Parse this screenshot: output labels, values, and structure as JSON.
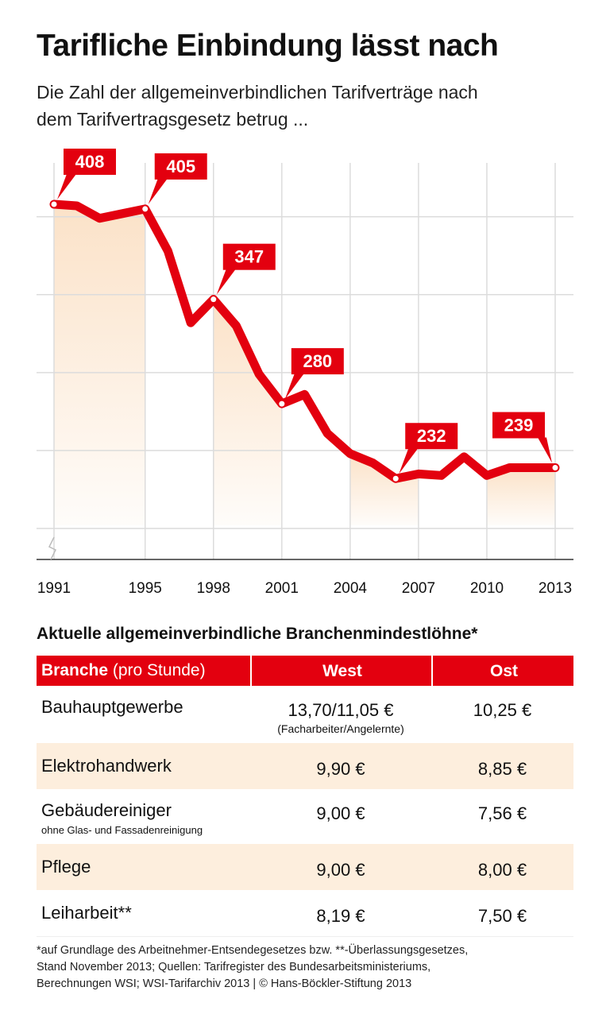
{
  "chart_data": {
    "type": "line",
    "title": "Tarifliche Einbindung lässt nach",
    "subtitle": [
      "Die Zahl der allgemeinverbindlichen Tarifverträge nach",
      "dem Tarifvertragsgesetz betrug ..."
    ],
    "x": [
      1991,
      1992,
      1993,
      1994,
      1995,
      1996,
      1997,
      1998,
      1999,
      2000,
      2001,
      2002,
      2003,
      2004,
      2005,
      2006,
      2007,
      2008,
      2009,
      2010,
      2011,
      2012,
      2013
    ],
    "values": [
      408,
      407,
      399,
      402,
      405,
      378,
      332,
      347,
      330,
      299,
      280,
      286,
      261,
      248,
      242,
      232,
      235,
      234,
      246,
      234,
      239,
      239,
      239
    ],
    "color": "#e3000f",
    "xlim": [
      1991,
      2013
    ],
    "xticks": [
      1991,
      1995,
      1998,
      2001,
      2004,
      2007,
      2010,
      2013
    ],
    "ylim": [
      200,
      420
    ],
    "yticks": [
      200,
      250,
      300,
      350,
      400
    ],
    "grid": true
  },
  "table": {
    "title": "Aktuelle allgemeinverbindliche Branchenmindestlöhne*",
    "header": {
      "branche": "Branche",
      "unit": "(pro Stunde)",
      "west": "West",
      "ost": "Ost"
    },
    "rows": [
      {
        "name": "Bauhauptgewerbe",
        "west": "13,70/11,05 €",
        "west_note": "(Facharbeiter/Angelernte)",
        "ost": "10,25 €"
      },
      {
        "name": "Elektrohandwerk",
        "west": "9,90 €",
        "ost": "8,85 €"
      },
      {
        "name": "Gebäudereiniger",
        "note": "ohne Glas- und Fassadenreinigung",
        "west": "9,00 €",
        "ost": "7,56 €"
      },
      {
        "name": "Pflege",
        "west": "9,00 €",
        "ost": "8,00 €"
      },
      {
        "name": "Leiharbeit**",
        "west": "8,19 €",
        "ost": "7,50 €"
      }
    ]
  },
  "footnote": [
    "*auf Grundlage des Arbeitnehmer-Entsendegesetzes bzw. **-Überlassungsgesetzes,",
    "Stand November 2013; Quellen: Tarifregister des Bundesarbeitsministeriums,",
    "Berechnungen WSI; WSI-Tarifarchiv 2013 | © Hans-Böckler-Stiftung 2013"
  ]
}
